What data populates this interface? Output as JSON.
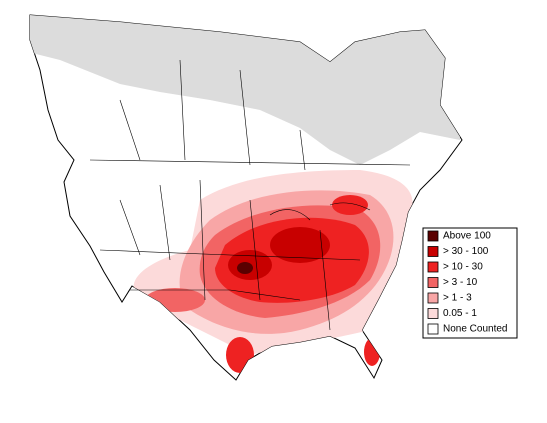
{
  "legend": {
    "items": [
      {
        "label": "Above 100",
        "color": "#5a0000"
      },
      {
        "label": "> 30 - 100",
        "color": "#c80000"
      },
      {
        "label": "> 10 - 30",
        "color": "#ee2222"
      },
      {
        "label": "> 3 - 10",
        "color": "#f26464"
      },
      {
        "label": "> 1 - 3",
        "color": "#f8a6a6"
      },
      {
        "label": "0.05 - 1",
        "color": "#fcdada"
      },
      {
        "label": "None Counted",
        "color": "#ffffff"
      }
    ]
  }
}
